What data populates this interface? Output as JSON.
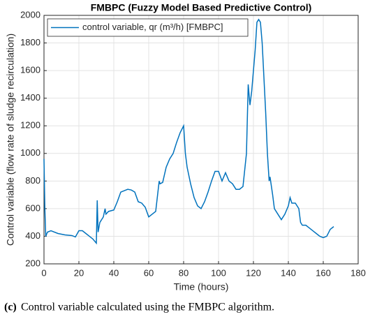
{
  "chart_data": {
    "type": "line",
    "title": "FMBPC (Fuzzy Model Based Predictive Control)",
    "x_label": "Time (hours)",
    "y_label": "Control variable (flow rate of sludge recirculation)",
    "x": [
      0,
      0.5,
      1,
      2,
      4,
      8,
      12,
      16,
      18,
      20,
      22,
      24,
      26,
      28,
      30,
      30.5,
      31,
      32,
      34,
      35,
      35.5,
      37,
      40,
      42,
      44,
      46,
      48,
      50,
      52,
      54,
      56,
      58,
      60,
      62,
      64,
      66,
      66.5,
      68,
      70,
      72,
      74,
      76,
      78,
      80,
      81,
      82,
      84,
      86,
      88,
      90,
      92,
      94,
      96,
      98,
      100,
      102,
      104,
      106,
      108,
      110,
      112,
      114,
      116,
      117,
      118,
      119,
      120,
      121,
      122,
      123,
      124,
      125,
      126,
      127,
      128,
      129,
      129.5,
      131,
      132,
      134,
      136,
      138,
      140,
      141,
      142,
      144,
      146,
      147,
      148,
      150,
      152,
      154,
      156,
      158,
      160,
      162,
      164,
      166
    ],
    "series": [
      {
        "name": "control variable, qr (m³/h) [FMBPC]",
        "color": "#0072bd",
        "values": [
          960,
          600,
          400,
          430,
          440,
          420,
          410,
          405,
          395,
          440,
          440,
          420,
          400,
          380,
          350,
          660,
          430,
          500,
          540,
          600,
          560,
          580,
          590,
          650,
          720,
          730,
          740,
          735,
          720,
          650,
          640,
          610,
          540,
          560,
          580,
          800,
          780,
          790,
          900,
          960,
          1000,
          1080,
          1150,
          1200,
          1000,
          900,
          780,
          680,
          620,
          600,
          650,
          720,
          800,
          870,
          870,
          800,
          860,
          800,
          780,
          740,
          740,
          760,
          1000,
          1500,
          1350,
          1450,
          1600,
          1750,
          1950,
          1970,
          1950,
          1800,
          1550,
          1300,
          1000,
          800,
          830,
          700,
          600,
          560,
          520,
          560,
          620,
          680,
          640,
          640,
          600,
          500,
          480,
          480,
          460,
          440,
          420,
          400,
          390,
          400,
          450,
          470
        ]
      }
    ],
    "xlim": [
      0,
      180
    ],
    "xticks": [
      0,
      20,
      40,
      60,
      80,
      100,
      120,
      140,
      160,
      180
    ],
    "ylim": [
      200,
      2000
    ],
    "yticks": [
      200,
      400,
      600,
      800,
      1000,
      1200,
      1400,
      1600,
      1800,
      2000
    ],
    "grid": true,
    "legend": "top-left",
    "caption": {
      "label": "(c)",
      "text": "Control variable calculated using the FMBPC algorithm."
    }
  }
}
